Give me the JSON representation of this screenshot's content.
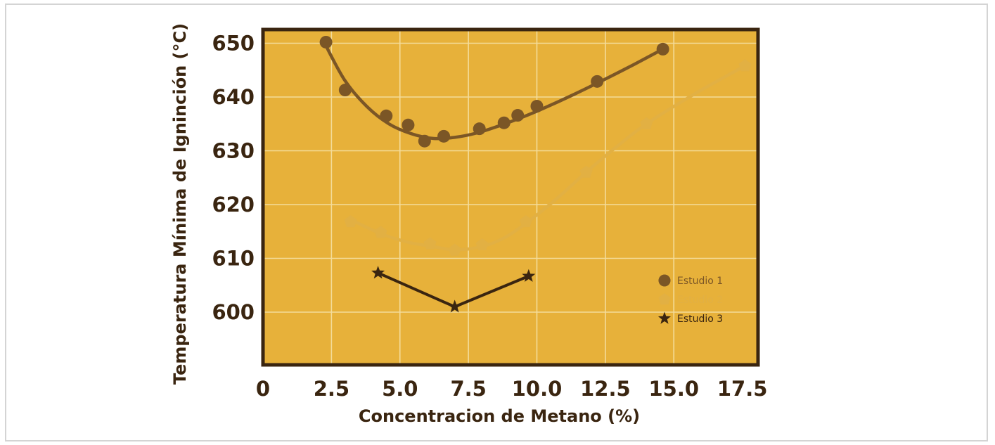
{
  "chart_data": {
    "type": "line",
    "title": "",
    "xlabel": "Concentracion de Metano (%)",
    "ylabel": "Temperatura Mínima de Igninción (°C)",
    "xlim": [
      0,
      17.5
    ],
    "ylim": [
      590,
      652
    ],
    "x_ticks": [
      "0",
      "2.5",
      "5.0",
      "7.5",
      "10.0",
      "12.5",
      "15.0",
      "17.5"
    ],
    "y_ticks": [
      "600",
      "610",
      "620",
      "630",
      "640",
      "650"
    ],
    "grid": true,
    "legend_position": "right",
    "series": [
      {
        "name": "Estudio 1",
        "marker": "circle",
        "color": "#7b5626",
        "points": [
          [
            2.3,
            650.2
          ],
          [
            3.0,
            641.3
          ],
          [
            4.5,
            636.5
          ],
          [
            5.3,
            634.8
          ],
          [
            5.9,
            631.8
          ],
          [
            6.6,
            632.7
          ],
          [
            7.9,
            634.1
          ],
          [
            8.8,
            635.2
          ],
          [
            9.3,
            636.6
          ],
          [
            10.0,
            638.3
          ],
          [
            12.2,
            642.9
          ],
          [
            14.6,
            648.9
          ]
        ],
        "curve": [
          [
            2.3,
            649.5
          ],
          [
            3.0,
            643.0
          ],
          [
            3.8,
            638.2
          ],
          [
            4.6,
            635.0
          ],
          [
            5.4,
            633.2
          ],
          [
            6.2,
            632.3
          ],
          [
            7.0,
            632.5
          ],
          [
            7.8,
            633.3
          ],
          [
            8.6,
            634.6
          ],
          [
            9.4,
            636.1
          ],
          [
            10.2,
            637.8
          ],
          [
            11.4,
            640.6
          ],
          [
            12.6,
            643.6
          ],
          [
            13.6,
            646.2
          ],
          [
            14.6,
            648.9
          ]
        ]
      },
      {
        "name": "Estudio 2",
        "marker": "pentagon",
        "color": "#e2b043",
        "points": [
          [
            3.2,
            616.8
          ],
          [
            4.3,
            614.8
          ],
          [
            6.1,
            612.7
          ],
          [
            7.0,
            611.5
          ],
          [
            8.0,
            612.5
          ],
          [
            9.6,
            616.8
          ],
          [
            11.8,
            626.0
          ],
          [
            14.0,
            635.0
          ],
          [
            17.6,
            645.8
          ]
        ],
        "curve": [
          [
            3.2,
            617.2
          ],
          [
            4.3,
            614.6
          ],
          [
            5.3,
            613.0
          ],
          [
            6.1,
            612.3
          ],
          [
            7.0,
            611.6
          ],
          [
            8.0,
            612.2
          ],
          [
            8.8,
            613.8
          ],
          [
            9.6,
            616.5
          ],
          [
            10.7,
            621.0
          ],
          [
            11.8,
            626.0
          ],
          [
            12.9,
            630.7
          ],
          [
            14.0,
            635.0
          ],
          [
            15.8,
            640.7
          ],
          [
            17.6,
            645.8
          ]
        ]
      },
      {
        "name": "Estudio 3",
        "marker": "star",
        "color": "#3a2510",
        "points": [
          [
            4.2,
            607.3
          ],
          [
            7.0,
            601.0
          ],
          [
            9.7,
            606.7
          ]
        ],
        "curve": [
          [
            4.2,
            607.3
          ],
          [
            7.0,
            601.0
          ],
          [
            9.7,
            606.7
          ]
        ]
      }
    ]
  },
  "colors": {
    "plot_bg": "#e7b13a",
    "border": "#3a2510",
    "grid": "#f4dc9a",
    "text": "#3a2510"
  }
}
